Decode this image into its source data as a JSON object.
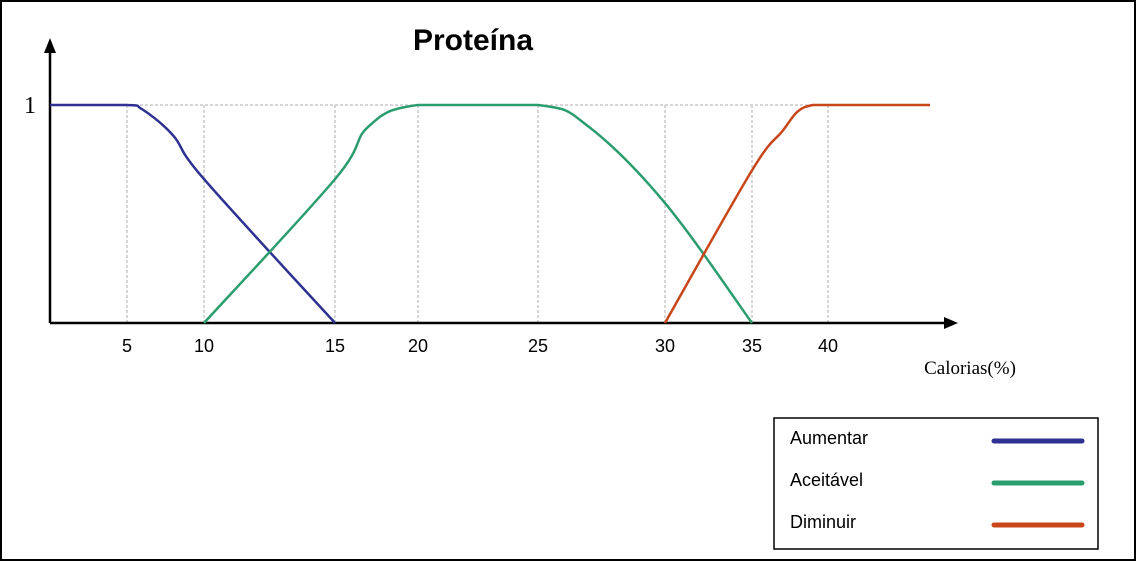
{
  "chart_data": {
    "type": "line",
    "title": "Proteína",
    "xlabel": "Calorias(%)",
    "ylabel": "",
    "xlim": [
      0,
      44
    ],
    "ylim": [
      0,
      1
    ],
    "x_ticks": [
      5,
      10,
      15,
      20,
      25,
      30,
      35,
      40
    ],
    "y_ticks": [
      1
    ],
    "grid": "vertical dashed lines at x ticks and horizontal line at y=1",
    "legend": "bottom-right",
    "series": [
      {
        "name": "Aumentar",
        "color": "#2e3192",
        "x": [
          0,
          5,
          6,
          8,
          10,
          15
        ],
        "y": [
          1,
          1,
          0.98,
          0.86,
          0.66,
          0
        ]
      },
      {
        "name": "Aceitável",
        "color": "#2a9d6e",
        "x": [
          10,
          15,
          17,
          20,
          25,
          27,
          30,
          35
        ],
        "y": [
          0,
          0.66,
          0.9,
          1,
          1,
          0.9,
          0.55,
          0
        ]
      },
      {
        "name": "Diminuir",
        "color": "#c8461a",
        "x": [
          30,
          35,
          37,
          38,
          39,
          40,
          44
        ],
        "y": [
          0,
          0.7,
          0.88,
          0.97,
          1,
          1,
          1
        ]
      }
    ]
  }
}
